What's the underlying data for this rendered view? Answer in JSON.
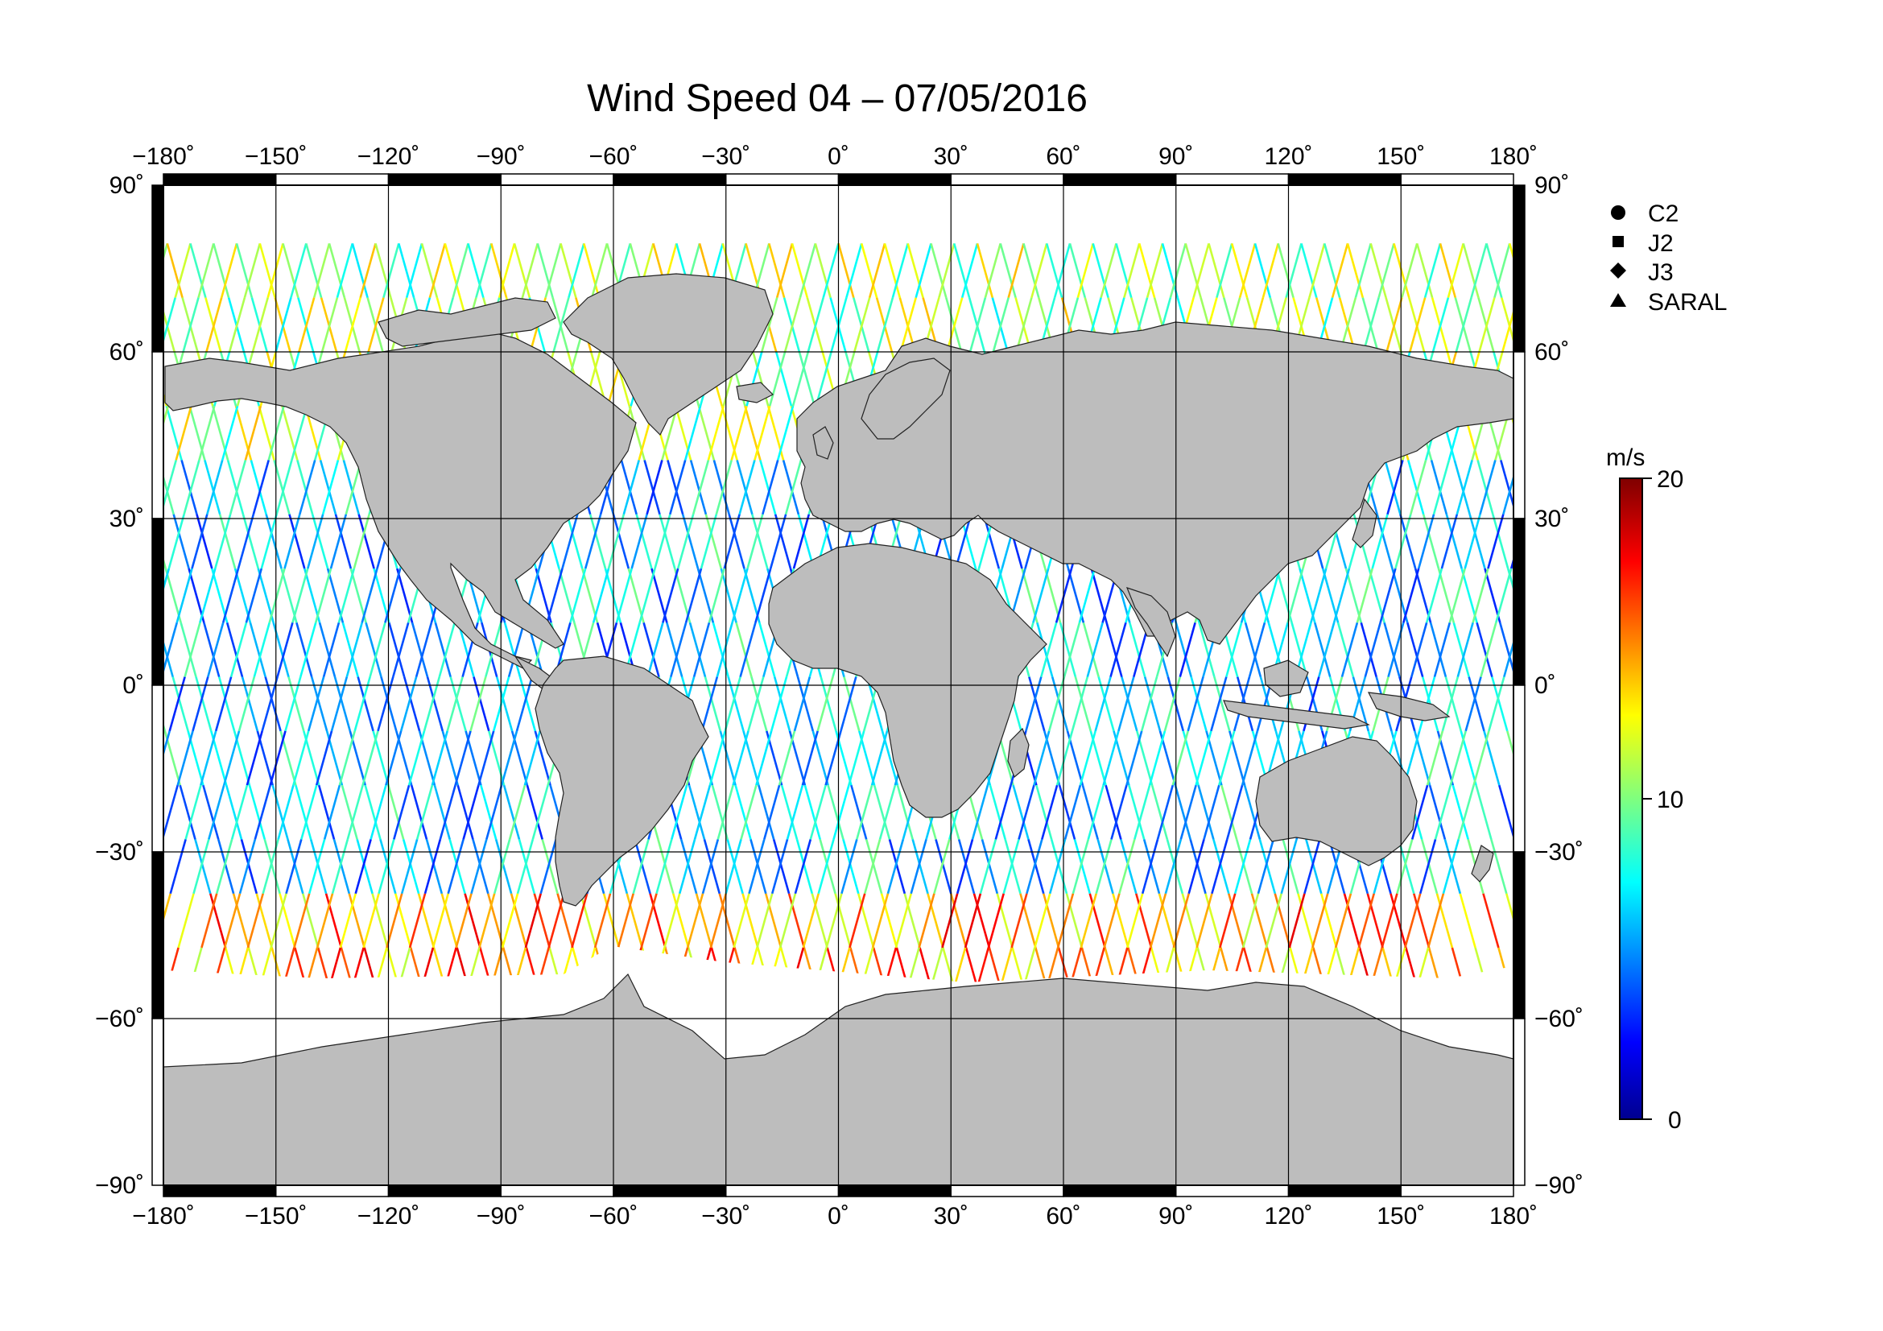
{
  "title": "Wind Speed 04 – 07/05/2016",
  "map": {
    "projection": "equirectangular",
    "lon_range": [
      -180,
      180
    ],
    "lat_range": [
      -90,
      90
    ],
    "lon_ticks": [
      "−180˚",
      "−150˚",
      "−120˚",
      "−90˚",
      "−60˚",
      "−30˚",
      "0˚",
      "30˚",
      "60˚",
      "90˚",
      "120˚",
      "150˚",
      "180˚"
    ],
    "lat_ticks": [
      "90˚",
      "60˚",
      "30˚",
      "0˚",
      "−30˚",
      "−60˚",
      "−90˚"
    ],
    "grid": true,
    "land_color": "#bdbdbd",
    "ocean_color": "#ffffff"
  },
  "legend": {
    "placement": "top-right",
    "items": [
      {
        "label": "C2",
        "symbol": "circle-icon"
      },
      {
        "label": "J2",
        "symbol": "square-icon"
      },
      {
        "label": "J3",
        "symbol": "diamond-icon"
      },
      {
        "label": "SARAL",
        "symbol": "triangle-icon"
      }
    ]
  },
  "colorbar": {
    "unit": "m/s",
    "min": 0,
    "max": 20,
    "tick_labels": [
      "20",
      "10",
      "0"
    ],
    "colormap": "jet"
  }
}
